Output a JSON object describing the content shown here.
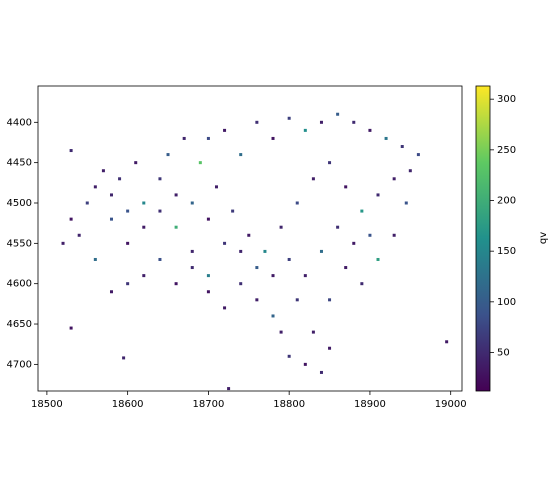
{
  "chart_data": {
    "type": "scatter",
    "x": [
      18560,
      18580,
      18600,
      18620,
      18640,
      18660,
      18680,
      18700,
      18720,
      18740,
      18760,
      18780,
      18800,
      18820,
      18840,
      18860,
      18880,
      18900,
      18920,
      18940,
      18950,
      18945,
      18930,
      18910,
      18890,
      18870,
      18850,
      18830,
      18820,
      18800,
      18780,
      18760,
      18740,
      18720,
      18700,
      18680,
      18660,
      18640,
      18620,
      18600,
      18580,
      18560,
      18540,
      18530,
      18550,
      18570,
      18590,
      18610,
      18650,
      18670,
      18690,
      18710,
      18730,
      18750,
      18770,
      18790,
      18810,
      18830,
      18850,
      18870,
      18890,
      18910,
      18930,
      18900,
      18880,
      18860,
      18840,
      18820,
      18800,
      18780,
      18760,
      18740,
      18720,
      18700,
      18680,
      18660,
      18640,
      18620,
      18600,
      18580,
      18810,
      18850,
      18840,
      18790,
      18700,
      18960,
      18520,
      18530,
      18595,
      18995,
      18725,
      18530
    ],
    "y": [
      4480,
      4520,
      4550,
      4500,
      4470,
      4530,
      4560,
      4420,
      4410,
      4440,
      4400,
      4420,
      4395,
      4410,
      4400,
      4390,
      4400,
      4410,
      4420,
      4430,
      4460,
      4500,
      4540,
      4570,
      4600,
      4580,
      4620,
      4660,
      4700,
      4690,
      4640,
      4620,
      4600,
      4630,
      4590,
      4580,
      4600,
      4570,
      4590,
      4600,
      4610,
      4570,
      4540,
      4520,
      4500,
      4460,
      4470,
      4450,
      4440,
      4420,
      4450,
      4480,
      4510,
      4540,
      4560,
      4530,
      4500,
      4470,
      4450,
      4480,
      4510,
      4490,
      4470,
      4540,
      4550,
      4530,
      4560,
      4590,
      4570,
      4590,
      4580,
      4560,
      4550,
      4520,
      4500,
      4490,
      4510,
      4530,
      4510,
      4490,
      4620,
      4680,
      4710,
      4660,
      4610,
      4440,
      4550,
      4655,
      4692,
      4672,
      4730,
      4435
    ],
    "values": [
      40,
      90,
      30,
      150,
      60,
      200,
      45,
      80,
      35,
      120,
      55,
      30,
      70,
      160,
      40,
      100,
      50,
      35,
      130,
      60,
      45,
      90,
      40,
      180,
      50,
      35,
      75,
      40,
      30,
      60,
      110,
      40,
      55,
      35,
      140,
      50,
      30,
      85,
      40,
      60,
      35,
      120,
      45,
      30,
      70,
      40,
      55,
      35,
      100,
      45,
      230,
      40,
      65,
      35,
      150,
      45,
      80,
      40,
      60,
      30,
      170,
      50,
      40,
      90,
      35,
      55,
      120,
      40,
      70,
      35,
      100,
      45,
      60,
      30,
      110,
      40,
      55,
      35,
      90,
      45,
      60,
      35,
      50,
      40,
      30,
      80,
      40,
      30,
      45,
      35,
      40,
      50
    ],
    "xlim": [
      18489,
      19014
    ],
    "ylim": [
      4733,
      4355
    ],
    "xticks": [
      18500,
      18600,
      18700,
      18800,
      18900,
      19000
    ],
    "yticks": [
      4400,
      4450,
      4500,
      4550,
      4600,
      4650,
      4700
    ],
    "colormap": "viridis",
    "clim": [
      12,
      313
    ],
    "cticks": [
      50,
      100,
      150,
      200,
      250,
      300
    ],
    "colorbar_label": "qv"
  }
}
